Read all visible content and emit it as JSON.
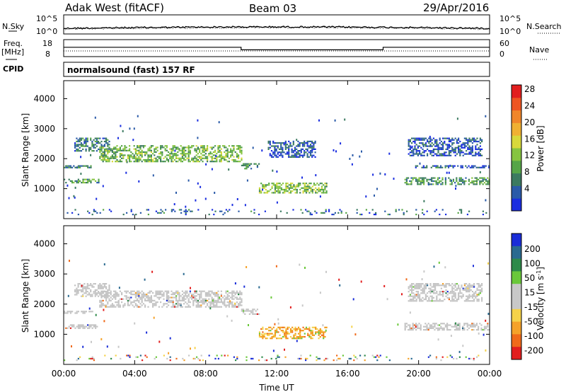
{
  "header": {
    "station": "Adak West (fitACF)",
    "beam": "Beam 03",
    "date": "29/Apr/2016"
  },
  "side_labels": {
    "nsky": "N.Sky",
    "freq": "Freq.",
    "freq_unit": "[MHz]",
    "cpid": "CPID",
    "nsearch": "N.Search",
    "nave": "Nave"
  },
  "cpid_text": "normalsound (fast) 157 RF",
  "colors": {
    "velocity_gray": "#c4c4c4",
    "velocity_orange": "#f29a1a"
  },
  "chart_data": [
    {
      "type": "line",
      "name": "noise",
      "series": [
        {
          "name": "N.Sky",
          "level": "near 10^1 to 10^2 across the day"
        },
        {
          "name": "N.Search",
          "level": "near 10^1 to 10^2 across the day"
        }
      ],
      "left_ticks": [
        "10^5",
        "10^0"
      ],
      "right_ticks": [
        "10^5",
        "10^0"
      ]
    },
    {
      "type": "line",
      "name": "frequency-nave",
      "left_ticks": [
        "18",
        "8"
      ],
      "right_ticks": [
        "60",
        "0"
      ],
      "freq_steps": [
        {
          "from": "00:00",
          "to": "10:00",
          "value_mhz": 13.5
        },
        {
          "from": "10:00",
          "to": "18:00",
          "value_mhz": 12.0
        },
        {
          "from": "18:00",
          "to": "24:00",
          "value_mhz": 13.5
        }
      ],
      "nave_level": 20
    },
    {
      "type": "heatmap",
      "name": "power",
      "xlabel": "",
      "ylabel": "Slant Range [km]",
      "yticks": [
        "1000",
        "2000",
        "3000",
        "4000"
      ],
      "ylim": [
        0,
        4600
      ],
      "xlim_hours": [
        0,
        24
      ],
      "colorbar": {
        "label": "Power [dB]",
        "ticks": [
          "4",
          "8",
          "12",
          "16",
          "20",
          "24",
          "28"
        ],
        "colors": [
          "#1a2de0",
          "#2a5aa8",
          "#3b7a60",
          "#56a548",
          "#86c440",
          "#d8d83a",
          "#f0b032",
          "#f0862a",
          "#ee5522",
          "#e21e1e"
        ]
      },
      "echo_regions": [
        {
          "t0": 0.0,
          "t1": 2.0,
          "r0": 1180,
          "r1": 1330,
          "level": 0.45
        },
        {
          "t0": 0.0,
          "t1": 1.6,
          "r0": 1680,
          "r1": 1780,
          "level": 0.35
        },
        {
          "t0": 0.6,
          "t1": 2.6,
          "r0": 2250,
          "r1": 2700,
          "level": 0.35
        },
        {
          "t0": 2.0,
          "t1": 10.0,
          "r0": 1900,
          "r1": 2450,
          "level": 0.55
        },
        {
          "t0": 10.0,
          "t1": 11.0,
          "r0": 1650,
          "r1": 1850,
          "level": 0.45
        },
        {
          "t0": 11.0,
          "t1": 14.8,
          "r0": 850,
          "r1": 1200,
          "level": 0.6
        },
        {
          "t0": 11.5,
          "t1": 14.2,
          "r0": 2050,
          "r1": 2600,
          "level": 0.2
        },
        {
          "t0": 19.2,
          "t1": 24.0,
          "r0": 1150,
          "r1": 1380,
          "level": 0.45
        },
        {
          "t0": 19.8,
          "t1": 24.0,
          "r0": 1680,
          "r1": 1780,
          "level": 0.25
        },
        {
          "t0": 19.4,
          "t1": 23.6,
          "r0": 2100,
          "r1": 2700,
          "level": 0.2
        },
        {
          "t0": 0.0,
          "t1": 24.0,
          "r0": 120,
          "r1": 320,
          "level": 0.25
        }
      ]
    },
    {
      "type": "heatmap",
      "name": "velocity",
      "xlabel": "Time UT",
      "ylabel": "Slant Range [km]",
      "xticks": [
        "00:00",
        "04:00",
        "08:00",
        "12:00",
        "16:00",
        "20:00",
        "00:00"
      ],
      "yticks": [
        "1000",
        "2000",
        "3000",
        "4000"
      ],
      "ylim": [
        0,
        4600
      ],
      "xlim_hours": [
        0,
        24
      ],
      "colorbar": {
        "label": "Velocity [m s-1]",
        "ticks": [
          "200",
          "100",
          "50",
          "15",
          "-15",
          "-50",
          "-100",
          "-200"
        ],
        "colors": [
          "#1a2dd8",
          "#2a6a90",
          "#2e8a4a",
          "#6ac83a",
          "#c8c8c8",
          "#c8c8c8",
          "#f5d24a",
          "#f5a22a",
          "#f06a1a",
          "#e21e1e"
        ]
      },
      "echo_regions": [
        {
          "t0": 0.0,
          "t1": 2.0,
          "r0": 1180,
          "r1": 1330,
          "v": "gray"
        },
        {
          "t0": 0.0,
          "t1": 1.6,
          "r0": 1680,
          "r1": 1780,
          "v": "gray"
        },
        {
          "t0": 0.6,
          "t1": 2.6,
          "r0": 2250,
          "r1": 2700,
          "v": "gray"
        },
        {
          "t0": 2.0,
          "t1": 10.0,
          "r0": 1900,
          "r1": 2450,
          "v": "gray"
        },
        {
          "t0": 10.0,
          "t1": 11.0,
          "r0": 1650,
          "r1": 1850,
          "v": "gray"
        },
        {
          "t0": 11.0,
          "t1": 14.8,
          "r0": 850,
          "r1": 1250,
          "v": "orange"
        },
        {
          "t0": 19.2,
          "t1": 24.0,
          "r0": 1150,
          "r1": 1380,
          "v": "gray"
        },
        {
          "t0": 19.4,
          "t1": 23.6,
          "r0": 2100,
          "r1": 2700,
          "v": "gray"
        },
        {
          "t0": 0.0,
          "t1": 24.0,
          "r0": 120,
          "r1": 320,
          "v": "mixed"
        }
      ]
    }
  ]
}
